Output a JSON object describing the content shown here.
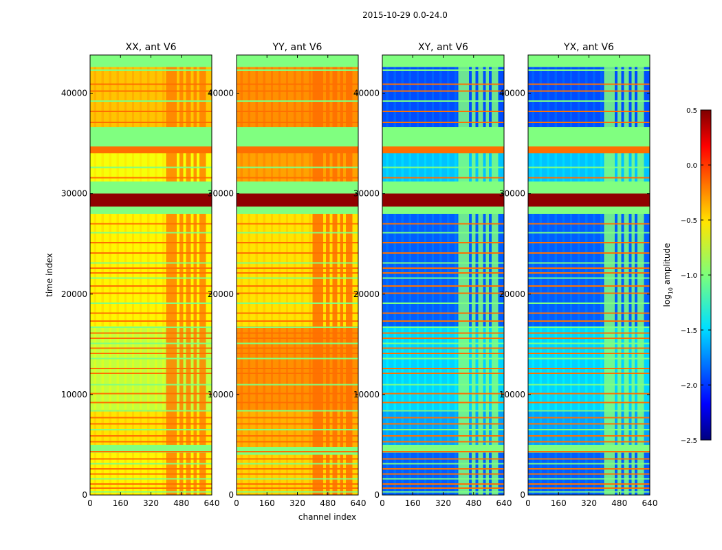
{
  "figure": {
    "suptitle": "2015-10-29 0.0-24.0",
    "xlabel": "channel index",
    "ylabel": "time index"
  },
  "colorbar": {
    "label": "log",
    "label_sub": "10",
    "label_rest": " amplitude",
    "range": [
      -2.5,
      0.5
    ],
    "ticks": [
      0.5,
      0.0,
      -0.5,
      -1.0,
      -1.5,
      -2.0,
      -2.5
    ],
    "tick_labels": [
      "0.5",
      "0.0",
      "−0.5",
      "−1.0",
      "−1.5",
      "−2.0",
      "−2.5"
    ],
    "colormap": "jet"
  },
  "chart_data": {
    "type": "heatmap",
    "x_range": [
      0,
      640
    ],
    "y_range": [
      0,
      43800
    ],
    "x_ticks": [
      0,
      160,
      320,
      480,
      640
    ],
    "y_ticks": [
      0,
      10000,
      20000,
      30000,
      40000
    ],
    "x_tick_labels": [
      "0",
      "160",
      "320",
      "480",
      "640"
    ],
    "y_tick_labels": [
      "0",
      "10000",
      "20000",
      "30000",
      "40000"
    ],
    "panels": [
      {
        "title": "XX, ant V6",
        "base_level": -0.65,
        "rfi_level": -0.25,
        "regions": [
          {
            "y0": 0,
            "y1": 4200,
            "level": -0.6
          },
          {
            "y0": 4200,
            "y1": 5000,
            "level": -1.0
          },
          {
            "y0": 5000,
            "y1": 8500,
            "level": -0.55
          },
          {
            "y0": 8500,
            "y1": 16800,
            "level": -0.8
          },
          {
            "y0": 16800,
            "y1": 28000,
            "level": -0.6
          },
          {
            "y0": 28000,
            "y1": 28700,
            "level": -1.0
          },
          {
            "y0": 28700,
            "y1": 30000,
            "level": 0.45
          },
          {
            "y0": 30000,
            "y1": 31200,
            "level": -1.0
          },
          {
            "y0": 31200,
            "y1": 34000,
            "level": -0.65
          },
          {
            "y0": 34000,
            "y1": 34700,
            "level": -0.2
          },
          {
            "y0": 34700,
            "y1": 36600,
            "level": -1.0
          },
          {
            "y0": 36600,
            "y1": 42600,
            "level": -0.45
          },
          {
            "y0": 42600,
            "y1": 43800,
            "level": -1.0
          }
        ]
      },
      {
        "title": "YY, ant V6",
        "base_level": -0.45,
        "rfi_level": -0.2,
        "regions": [
          {
            "y0": 0,
            "y1": 4000,
            "level": -0.5
          },
          {
            "y0": 4000,
            "y1": 4800,
            "level": -1.0
          },
          {
            "y0": 4800,
            "y1": 8500,
            "level": -0.4
          },
          {
            "y0": 8500,
            "y1": 16800,
            "level": -0.3
          },
          {
            "y0": 16800,
            "y1": 28000,
            "level": -0.55
          },
          {
            "y0": 28000,
            "y1": 28700,
            "level": -1.0
          },
          {
            "y0": 28700,
            "y1": 30000,
            "level": 0.45
          },
          {
            "y0": 30000,
            "y1": 31200,
            "level": -1.0
          },
          {
            "y0": 31200,
            "y1": 34000,
            "level": -0.35
          },
          {
            "y0": 34000,
            "y1": 34700,
            "level": -0.2
          },
          {
            "y0": 34700,
            "y1": 36600,
            "level": -1.0
          },
          {
            "y0": 36600,
            "y1": 42600,
            "level": -0.3
          },
          {
            "y0": 42600,
            "y1": 43800,
            "level": -1.0
          }
        ]
      },
      {
        "title": "XY, ant V6",
        "base_level": -1.8,
        "rfi_level": -1.0,
        "regions": [
          {
            "y0": 0,
            "y1": 4200,
            "level": -1.85
          },
          {
            "y0": 4200,
            "y1": 5000,
            "level": -1.0
          },
          {
            "y0": 5000,
            "y1": 8500,
            "level": -1.65
          },
          {
            "y0": 8500,
            "y1": 16800,
            "level": -1.5
          },
          {
            "y0": 16800,
            "y1": 28000,
            "level": -1.85
          },
          {
            "y0": 28000,
            "y1": 28700,
            "level": -1.0
          },
          {
            "y0": 28700,
            "y1": 30000,
            "level": 0.45
          },
          {
            "y0": 30000,
            "y1": 31200,
            "level": -1.0
          },
          {
            "y0": 31200,
            "y1": 34000,
            "level": -1.55
          },
          {
            "y0": 34000,
            "y1": 34700,
            "level": -0.2
          },
          {
            "y0": 34700,
            "y1": 36600,
            "level": -1.0
          },
          {
            "y0": 36600,
            "y1": 42600,
            "level": -1.9
          },
          {
            "y0": 42600,
            "y1": 43800,
            "level": -1.0
          }
        ]
      },
      {
        "title": "YX, ant V6",
        "base_level": -1.8,
        "rfi_level": -1.0,
        "regions": [
          {
            "y0": 0,
            "y1": 4200,
            "level": -1.85
          },
          {
            "y0": 4200,
            "y1": 5000,
            "level": -1.0
          },
          {
            "y0": 5000,
            "y1": 8500,
            "level": -1.65
          },
          {
            "y0": 8500,
            "y1": 16800,
            "level": -1.5
          },
          {
            "y0": 16800,
            "y1": 28000,
            "level": -1.85
          },
          {
            "y0": 28000,
            "y1": 28700,
            "level": -1.0
          },
          {
            "y0": 28700,
            "y1": 30000,
            "level": 0.45
          },
          {
            "y0": 30000,
            "y1": 31200,
            "level": -1.0
          },
          {
            "y0": 31200,
            "y1": 34000,
            "level": -1.55
          },
          {
            "y0": 34000,
            "y1": 34700,
            "level": -0.2
          },
          {
            "y0": 34700,
            "y1": 36600,
            "level": -1.0
          },
          {
            "y0": 36600,
            "y1": 42600,
            "level": -1.9
          },
          {
            "y0": 42600,
            "y1": 43800,
            "level": -1.0
          }
        ]
      }
    ],
    "flag_rows": [
      300,
      700,
      1100,
      1600,
      2100,
      2600,
      3100,
      3600,
      4300,
      4700,
      5300,
      5900,
      6500,
      7100,
      7700,
      8400,
      9200,
      10100,
      11000,
      12100,
      12600,
      13600,
      14100,
      14600,
      15100,
      15600,
      16100,
      16700,
      17300,
      18100,
      19100,
      20100,
      20800,
      21600,
      22100,
      22600,
      23100,
      24100,
      25100,
      26100,
      27000,
      31600,
      32600,
      37100,
      38200,
      39200,
      40200,
      40900,
      42300
    ],
    "rfi_channel_ranges": [
      [
        400,
        455
      ],
      [
        470,
        490
      ],
      [
        505,
        530
      ],
      [
        545,
        560
      ],
      [
        575,
        610
      ]
    ]
  }
}
